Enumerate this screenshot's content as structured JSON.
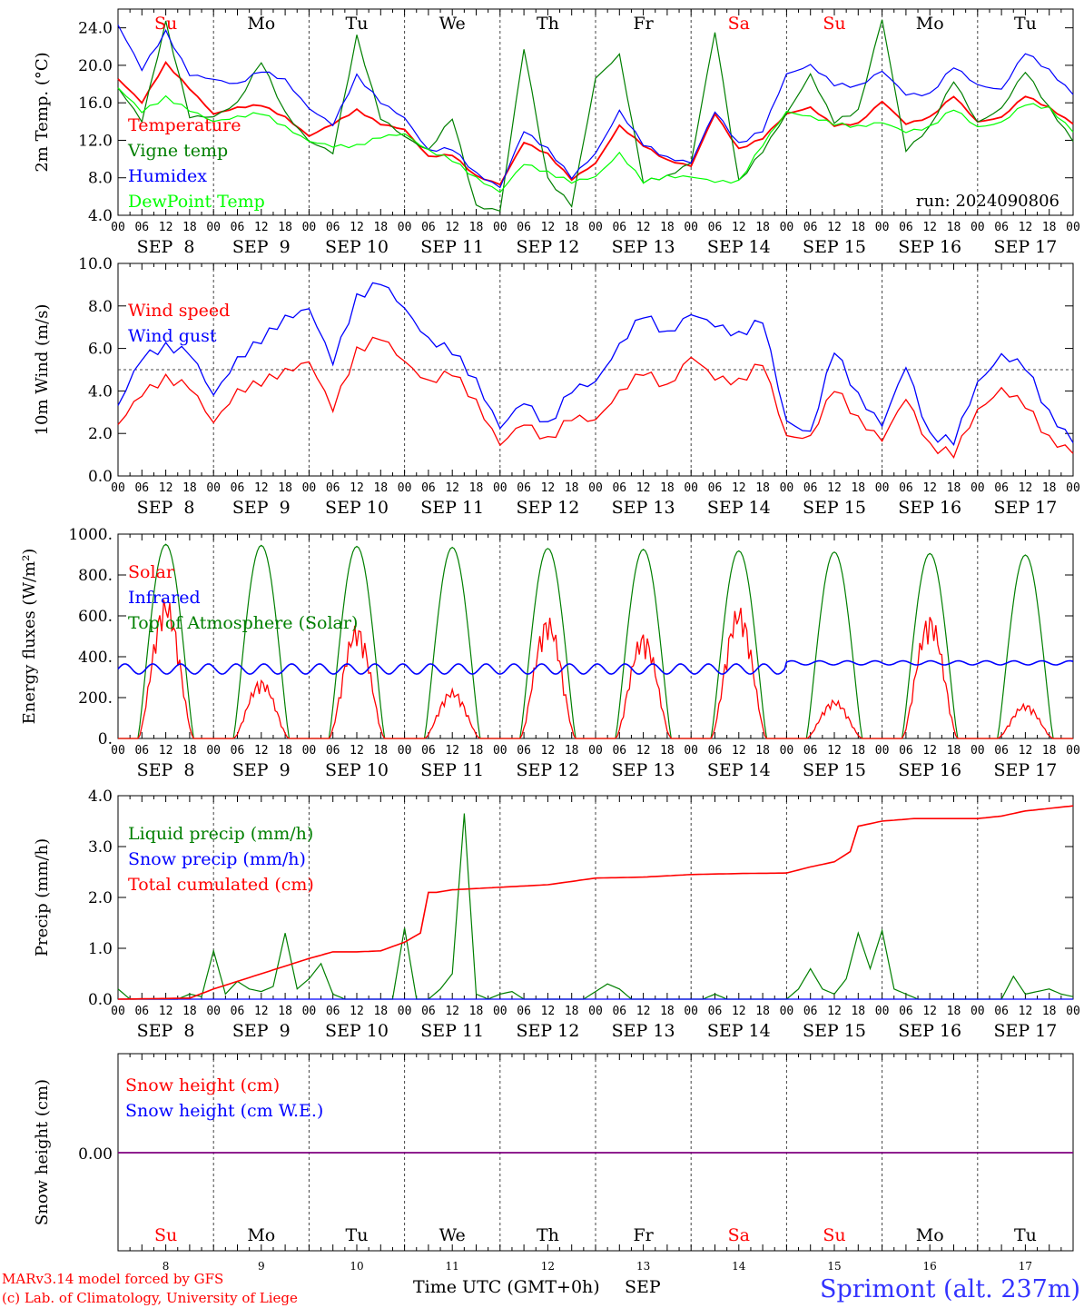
{
  "run_label": "run: 2024090806",
  "footer": {
    "model": "MARv3.14 model forced by GFS",
    "copyright": "(c) Lab. of Climatology, University of Liege",
    "axis_title": "Time UTC (GMT+0h)",
    "month": "SEP",
    "station": "Sprimont (alt. 237m)"
  },
  "days": [
    {
      "abbr": "Su",
      "date": "8",
      "weekend": true
    },
    {
      "abbr": "Mo",
      "date": "9",
      "weekend": false
    },
    {
      "abbr": "Tu",
      "date": "10",
      "weekend": false
    },
    {
      "abbr": "We",
      "date": "11",
      "weekend": false
    },
    {
      "abbr": "Th",
      "date": "12",
      "weekend": false
    },
    {
      "abbr": "Fr",
      "date": "13",
      "weekend": false
    },
    {
      "abbr": "Sa",
      "date": "14",
      "weekend": true
    },
    {
      "abbr": "Su",
      "date": "15",
      "weekend": true
    },
    {
      "abbr": "Mo",
      "date": "16",
      "weekend": false
    },
    {
      "abbr": "Tu",
      "date": "17",
      "weekend": false
    }
  ],
  "hour_ticks": [
    "00",
    "06",
    "12",
    "18"
  ],
  "date_labels": [
    "SEP  8",
    "SEP  9",
    "SEP 10",
    "SEP 11",
    "SEP 12",
    "SEP 13",
    "SEP 14",
    "SEP 15",
    "SEP 16",
    "SEP 17"
  ],
  "colors": {
    "red": "#ff0000",
    "green": "#007f00",
    "blue": "#0000ff",
    "lightgreen": "#00ff00",
    "purple": "#7f007f",
    "axis": "#000000"
  },
  "chart_data": [
    {
      "type": "line",
      "ylabel": "2m Temp. (°C)",
      "ylim": [
        4,
        26
      ],
      "yticks": [
        "4.0",
        "8.0",
        "12.0",
        "16.0",
        "20.0",
        "24.0"
      ],
      "x_unit": "hours since SEP 8 00 UTC",
      "series": [
        {
          "name": "Temperature",
          "color": "red",
          "x": [
            0,
            6,
            12,
            18,
            24,
            30,
            36,
            42,
            48,
            54,
            60,
            66,
            72,
            78,
            84,
            90,
            96,
            102,
            108,
            114,
            120,
            126,
            132,
            138,
            144,
            150,
            156,
            162,
            168,
            174,
            180,
            186,
            192,
            198,
            204,
            210,
            216,
            222,
            228,
            234,
            240
          ],
          "values": [
            18.5,
            16,
            20.2,
            17.5,
            14.8,
            15.5,
            15.8,
            14.5,
            12.5,
            13.8,
            15.3,
            13.8,
            13.2,
            10.3,
            10.5,
            8.2,
            7.3,
            11.8,
            10.5,
            7.8,
            9.5,
            13.5,
            11.4,
            9.8,
            9.2,
            14.8,
            11.0,
            12.2,
            14.8,
            15.5,
            13.6,
            13.8,
            16.2,
            13.8,
            14.5,
            16.8,
            14.0,
            14.5,
            16.8,
            15.5,
            13.8
          ]
        },
        {
          "name": "Vigne temp",
          "color": "green",
          "x": [
            0,
            6,
            12,
            18,
            24,
            30,
            36,
            42,
            48,
            54,
            60,
            66,
            72,
            78,
            84,
            90,
            96,
            102,
            108,
            114,
            120,
            126,
            132,
            138,
            144,
            150,
            156,
            162,
            168,
            174,
            180,
            186,
            192,
            198,
            204,
            210,
            216,
            222,
            228,
            234,
            240
          ],
          "values": [
            17.5,
            14,
            24.5,
            14.5,
            14.5,
            16,
            20.5,
            15,
            12,
            10.8,
            23.2,
            14.5,
            12.5,
            11.0,
            14.5,
            5.0,
            4.5,
            21.8,
            7.8,
            5.0,
            18.5,
            21.0,
            7.5,
            8.0,
            9.5,
            23.5,
            7.5,
            10.8,
            14.8,
            19.0,
            14.0,
            15.2,
            25.0,
            11.0,
            13.5,
            18.5,
            14.0,
            15.5,
            19.5,
            15.5,
            12.0
          ]
        },
        {
          "name": "Humidex",
          "color": "blue",
          "x": [
            0,
            6,
            12,
            18,
            24,
            30,
            36,
            42,
            48,
            54,
            60,
            66,
            72,
            78,
            84,
            90,
            96,
            102,
            108,
            114,
            120,
            126,
            132,
            138,
            144,
            150,
            156,
            162,
            168,
            174,
            180,
            186,
            192,
            198,
            204,
            210,
            216,
            222,
            228,
            234,
            240
          ],
          "values": [
            24.2,
            19.5,
            23.5,
            19.0,
            18.5,
            18.0,
            19.5,
            18.5,
            15.5,
            13.8,
            19.0,
            16.2,
            14.5,
            11.0,
            11.2,
            8.5,
            7.0,
            13.0,
            11.0,
            8.0,
            10.5,
            15.0,
            11.5,
            10.0,
            9.5,
            15.0,
            11.5,
            13.0,
            19.0,
            20.0,
            18.0,
            17.8,
            19.5,
            17.0,
            17.0,
            20.0,
            18.0,
            17.5,
            21.5,
            19.5,
            17.0
          ]
        },
        {
          "name": "DewPoint Temp",
          "color": "lightgreen",
          "x": [
            0,
            6,
            12,
            18,
            24,
            30,
            36,
            42,
            48,
            54,
            60,
            66,
            72,
            78,
            84,
            90,
            96,
            102,
            108,
            114,
            120,
            126,
            132,
            138,
            144,
            150,
            156,
            162,
            168,
            174,
            180,
            186,
            192,
            198,
            204,
            210,
            216,
            222,
            228,
            234,
            240
          ],
          "values": [
            17.5,
            15.0,
            16.5,
            15.2,
            14.0,
            14.5,
            15.0,
            13.5,
            12.0,
            11.5,
            11.5,
            12.5,
            12.8,
            11.0,
            10.0,
            8.0,
            6.5,
            9.5,
            8.5,
            7.5,
            8.0,
            10.5,
            7.5,
            8.0,
            8.0,
            7.5,
            7.5,
            11.5,
            15.0,
            14.5,
            13.8,
            13.5,
            14.0,
            13.0,
            13.5,
            15.5,
            13.5,
            14.0,
            16.0,
            15.5,
            13.0
          ]
        }
      ]
    },
    {
      "type": "line",
      "ylabel": "10m Wind (m/s)",
      "ylim": [
        0,
        10
      ],
      "yticks": [
        "0.0",
        "2.0",
        "4.0",
        "6.0",
        "8.0",
        "10.0"
      ],
      "reference_line": 5,
      "series": [
        {
          "name": "Wind speed",
          "color": "red",
          "x": [
            0,
            6,
            12,
            18,
            24,
            30,
            36,
            42,
            48,
            54,
            60,
            66,
            72,
            78,
            84,
            90,
            96,
            102,
            108,
            114,
            120,
            126,
            132,
            138,
            144,
            150,
            156,
            162,
            168,
            174,
            180,
            186,
            192,
            198,
            204,
            210,
            216,
            222,
            228,
            234,
            240
          ],
          "values": [
            2.3,
            3.8,
            4.5,
            4.2,
            2.5,
            4.0,
            4.5,
            5.0,
            5.5,
            3.3,
            6.0,
            6.7,
            5.5,
            4.5,
            5.0,
            3.5,
            1.5,
            2.5,
            1.6,
            2.7,
            2.5,
            3.8,
            4.8,
            4.0,
            5.5,
            4.5,
            4.3,
            5.3,
            1.8,
            1.8,
            4.2,
            2.7,
            1.8,
            3.8,
            1.5,
            1.2,
            3.2,
            4.2,
            3.5,
            1.8,
            1.2
          ]
        },
        {
          "name": "Wind gust",
          "color": "blue",
          "x": [
            0,
            6,
            12,
            18,
            24,
            30,
            36,
            42,
            48,
            54,
            60,
            66,
            72,
            78,
            84,
            90,
            96,
            102,
            108,
            114,
            120,
            126,
            132,
            138,
            144,
            150,
            156,
            162,
            168,
            174,
            180,
            186,
            192,
            198,
            204,
            210,
            216,
            222,
            228,
            234,
            240
          ],
          "values": [
            3.2,
            5.5,
            6.0,
            5.8,
            3.8,
            5.5,
            6.5,
            7.5,
            8.0,
            5.5,
            8.5,
            9.3,
            8.0,
            6.5,
            6.0,
            4.5,
            2.3,
            3.5,
            2.3,
            4.0,
            4.3,
            6.0,
            7.5,
            6.5,
            7.5,
            7.0,
            6.5,
            7.3,
            2.5,
            2.0,
            6.0,
            3.8,
            2.5,
            5.3,
            2.0,
            1.8,
            4.5,
            5.8,
            5.3,
            3.0,
            1.7
          ]
        }
      ]
    },
    {
      "type": "line",
      "ylabel": "Energy fluxes (W/m²)",
      "ylim": [
        0,
        1000
      ],
      "yticks": [
        "0.",
        "200.",
        "400.",
        "600.",
        "800.",
        "1000."
      ],
      "toa_peaks": [
        950,
        945,
        940,
        935,
        930,
        925,
        918,
        912,
        905,
        898
      ],
      "solar_peaks": [
        690,
        290,
        560,
        240,
        600,
        520,
        650,
        190,
        610,
        170
      ],
      "infrared_mean": 340,
      "series": [
        {
          "name": "Solar",
          "color": "red"
        },
        {
          "name": "Infrared",
          "color": "blue"
        },
        {
          "name": "Top of Atmosphere (Solar)",
          "color": "green"
        }
      ]
    },
    {
      "type": "line",
      "ylabel": "Precip (mm/h)",
      "ylim": [
        0,
        4
      ],
      "yticks": [
        "0.0",
        "1.0",
        "2.0",
        "3.0",
        "4.0"
      ],
      "series": [
        {
          "name": "Liquid precip (mm/h)",
          "color": "green",
          "x": [
            0,
            3,
            6,
            9,
            12,
            15,
            18,
            21,
            24,
            27,
            30,
            33,
            36,
            39,
            42,
            45,
            48,
            51,
            54,
            57,
            60,
            63,
            66,
            69,
            72,
            75,
            78,
            81,
            84,
            87,
            90,
            93,
            96,
            99,
            102,
            105,
            108,
            111,
            114,
            117,
            120,
            123,
            126,
            129,
            132,
            135,
            138,
            141,
            144,
            147,
            150,
            153,
            156,
            159,
            162,
            165,
            168,
            171,
            174,
            177,
            180,
            183,
            186,
            189,
            192,
            195,
            198,
            201,
            204,
            207,
            210,
            213,
            216,
            219,
            222,
            225,
            228,
            231,
            234,
            237,
            240
          ],
          "values": [
            0.2,
            0,
            0,
            0,
            0,
            0,
            0.1,
            0.05,
            0.95,
            0.1,
            0.35,
            0.2,
            0.15,
            0.25,
            1.3,
            0.2,
            0.4,
            0.7,
            0.1,
            0,
            0,
            0,
            0,
            0,
            1.4,
            0,
            0,
            0.2,
            0.5,
            3.65,
            0.1,
            0,
            0.1,
            0.15,
            0,
            0,
            0,
            0,
            0,
            0,
            0.15,
            0.3,
            0.2,
            0,
            0,
            0,
            0,
            0,
            0,
            0,
            0.1,
            0,
            0,
            0,
            0,
            0,
            0,
            0.2,
            0.6,
            0.2,
            0.1,
            0.4,
            1.3,
            0.6,
            1.35,
            0.2,
            0.1,
            0,
            0,
            0,
            0,
            0,
            0,
            0,
            0,
            0.45,
            0.1,
            0.15,
            0.2,
            0.1,
            0.05
          ]
        },
        {
          "name": "Snow precip (mm/h)",
          "color": "blue",
          "x": [
            0,
            240
          ],
          "values": [
            0,
            0
          ]
        },
        {
          "name": "Total cumulated (cm)",
          "color": "red",
          "x": [
            0,
            18,
            24,
            30,
            36,
            42,
            48,
            54,
            60,
            66,
            72,
            76,
            78,
            80,
            84,
            96,
            108,
            120,
            132,
            144,
            156,
            168,
            174,
            180,
            184,
            186,
            192,
            200,
            204,
            216,
            222,
            228,
            240
          ],
          "values": [
            0,
            0.02,
            0.2,
            0.35,
            0.5,
            0.65,
            0.8,
            0.93,
            0.93,
            0.95,
            1.12,
            1.3,
            2.1,
            2.1,
            2.15,
            2.2,
            2.25,
            2.38,
            2.4,
            2.45,
            2.47,
            2.48,
            2.6,
            2.7,
            2.9,
            3.4,
            3.5,
            3.55,
            3.55,
            3.55,
            3.6,
            3.7,
            3.8
          ]
        }
      ]
    },
    {
      "type": "line",
      "ylabel": "Snow height (cm)",
      "yticks": [
        "0.00"
      ],
      "series": [
        {
          "name": "Snow height (cm)",
          "color": "red",
          "x": [
            0,
            240
          ],
          "values": [
            0,
            0
          ]
        },
        {
          "name": "Snow height (cm W.E.)",
          "color": "blue",
          "x": [
            0,
            240
          ],
          "values": [
            0,
            0
          ]
        }
      ]
    }
  ]
}
